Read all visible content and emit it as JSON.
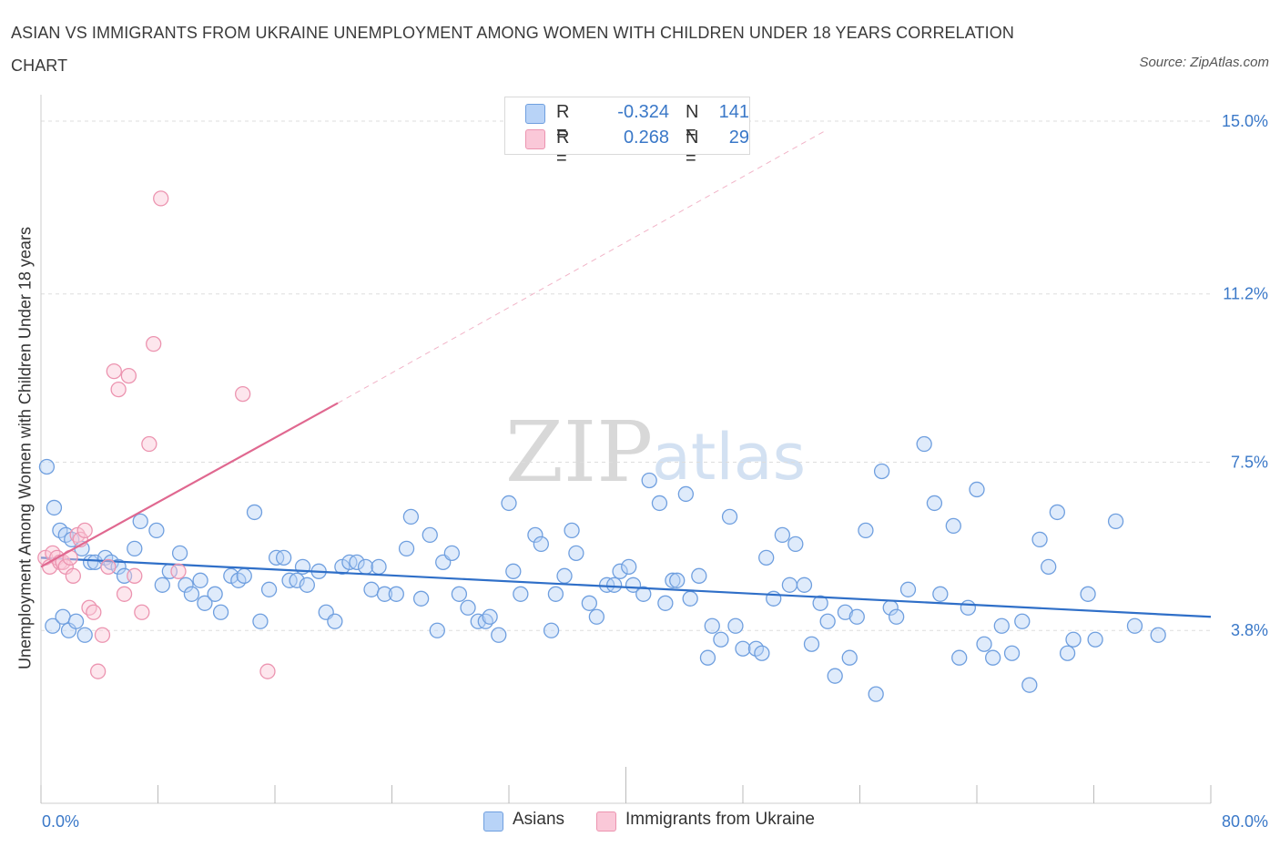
{
  "header": {
    "title": "ASIAN VS IMMIGRANTS FROM UKRAINE UNEMPLOYMENT AMONG WOMEN WITH CHILDREN UNDER 18 YEARS CORRELATION CHART",
    "source": "Source: ZipAtlas.com"
  },
  "watermark": {
    "zip": "ZIP",
    "atlas": "atlas"
  },
  "legend": {
    "rows": [
      {
        "swatch": "#b8d3f7",
        "border": "#6f9fdf",
        "r_label": "R =",
        "r_value": "-0.324",
        "n_label": "N =",
        "n_value": "141"
      },
      {
        "swatch": "#fac8d8",
        "border": "#ec94b0",
        "r_label": "R =",
        "r_value": "0.268",
        "n_label": "N =",
        "n_value": "29"
      }
    ]
  },
  "bottom_legend": [
    {
      "label": "Asians",
      "swatch": "#b8d3f7",
      "border": "#6f9fdf"
    },
    {
      "label": "Immigrants from Ukraine",
      "swatch": "#fac8d8",
      "border": "#ec94b0"
    }
  ],
  "chart_data": {
    "type": "scatter",
    "title": "ASIAN VS IMMIGRANTS FROM UKRAINE UNEMPLOYMENT AMONG WOMEN WITH CHILDREN UNDER 18 YEARS CORRELATION CHART",
    "xlabel": "",
    "ylabel": "Unemployment Among Women with Children Under 18 years",
    "xlim": [
      0,
      80
    ],
    "ylim": [
      0,
      15.3
    ],
    "x_tick_labels": [
      "0.0%",
      "80.0%"
    ],
    "y_ticks": [
      3.8,
      7.5,
      11.2,
      15.0
    ],
    "y_tick_labels": [
      "3.8%",
      "7.5%",
      "11.2%",
      "15.0%"
    ],
    "grid": "horizontal dashed",
    "legend_position": "top-center",
    "colors": {
      "asians": "#6f9fdf",
      "asians_fill": "#b8d3f7",
      "ukraine": "#ec94b0",
      "ukraine_fill": "#fac8d8",
      "asians_trend": "#2f6fc8",
      "ukraine_trend": "#e06890"
    },
    "series": [
      {
        "name": "Asians",
        "color": "#6f9fdf",
        "trend": {
          "x": [
            0,
            80
          ],
          "y": [
            5.4,
            4.1
          ]
        },
        "points": [
          [
            0.4,
            7.4
          ],
          [
            0.9,
            6.5
          ],
          [
            1.3,
            6.0
          ],
          [
            1.7,
            5.9
          ],
          [
            2.1,
            5.8
          ],
          [
            2.8,
            5.6
          ],
          [
            3.4,
            5.3
          ],
          [
            3.7,
            5.3
          ],
          [
            4.4,
            5.4
          ],
          [
            4.8,
            5.3
          ],
          [
            5.3,
            5.2
          ],
          [
            5.7,
            5.0
          ],
          [
            6.4,
            5.6
          ],
          [
            6.8,
            6.2
          ],
          [
            7.9,
            6.0
          ],
          [
            8.3,
            4.8
          ],
          [
            8.8,
            5.1
          ],
          [
            9.5,
            5.5
          ],
          [
            9.9,
            4.8
          ],
          [
            10.3,
            4.6
          ],
          [
            10.9,
            4.9
          ],
          [
            11.2,
            4.4
          ],
          [
            11.9,
            4.6
          ],
          [
            12.3,
            4.2
          ],
          [
            13.0,
            5.0
          ],
          [
            13.5,
            4.9
          ],
          [
            13.9,
            5.0
          ],
          [
            14.6,
            6.4
          ],
          [
            15.0,
            4.0
          ],
          [
            15.6,
            4.7
          ],
          [
            16.1,
            5.4
          ],
          [
            16.6,
            5.4
          ],
          [
            17.0,
            4.9
          ],
          [
            17.5,
            4.9
          ],
          [
            17.9,
            5.2
          ],
          [
            18.2,
            4.8
          ],
          [
            19.0,
            5.1
          ],
          [
            19.5,
            4.2
          ],
          [
            20.1,
            4.0
          ],
          [
            20.6,
            5.2
          ],
          [
            21.1,
            5.3
          ],
          [
            21.6,
            5.3
          ],
          [
            22.2,
            5.2
          ],
          [
            22.6,
            4.7
          ],
          [
            23.1,
            5.2
          ],
          [
            23.5,
            4.6
          ],
          [
            24.3,
            4.6
          ],
          [
            25.0,
            5.6
          ],
          [
            25.3,
            6.3
          ],
          [
            26.0,
            4.5
          ],
          [
            26.6,
            5.9
          ],
          [
            27.1,
            3.8
          ],
          [
            27.5,
            5.3
          ],
          [
            28.1,
            5.5
          ],
          [
            28.6,
            4.6
          ],
          [
            29.2,
            4.3
          ],
          [
            29.9,
            4.0
          ],
          [
            30.4,
            4.0
          ],
          [
            30.7,
            4.1
          ],
          [
            31.3,
            3.7
          ],
          [
            32.0,
            6.6
          ],
          [
            32.3,
            5.1
          ],
          [
            32.8,
            4.6
          ],
          [
            33.8,
            5.9
          ],
          [
            34.2,
            5.7
          ],
          [
            34.9,
            3.8
          ],
          [
            35.2,
            4.6
          ],
          [
            35.8,
            5.0
          ],
          [
            36.3,
            6.0
          ],
          [
            36.6,
            5.5
          ],
          [
            37.5,
            4.4
          ],
          [
            38.0,
            4.1
          ],
          [
            38.7,
            4.8
          ],
          [
            39.2,
            4.8
          ],
          [
            39.6,
            5.1
          ],
          [
            40.2,
            5.2
          ],
          [
            40.5,
            4.8
          ],
          [
            41.2,
            4.6
          ],
          [
            41.6,
            7.1
          ],
          [
            42.3,
            6.6
          ],
          [
            42.7,
            4.4
          ],
          [
            43.2,
            4.9
          ],
          [
            43.5,
            4.9
          ],
          [
            44.1,
            6.8
          ],
          [
            44.4,
            4.5
          ],
          [
            45.0,
            5.0
          ],
          [
            45.6,
            3.2
          ],
          [
            45.9,
            3.9
          ],
          [
            46.5,
            3.6
          ],
          [
            47.1,
            6.3
          ],
          [
            47.5,
            3.9
          ],
          [
            48.0,
            3.4
          ],
          [
            48.9,
            3.4
          ],
          [
            49.3,
            3.3
          ],
          [
            49.6,
            5.4
          ],
          [
            50.1,
            4.5
          ],
          [
            50.7,
            5.9
          ],
          [
            51.2,
            4.8
          ],
          [
            51.6,
            5.7
          ],
          [
            52.2,
            4.8
          ],
          [
            52.7,
            3.5
          ],
          [
            53.3,
            4.4
          ],
          [
            53.8,
            4.0
          ],
          [
            54.3,
            2.8
          ],
          [
            55.0,
            4.2
          ],
          [
            55.3,
            3.2
          ],
          [
            55.8,
            4.1
          ],
          [
            56.4,
            6.0
          ],
          [
            57.1,
            2.4
          ],
          [
            57.5,
            7.3
          ],
          [
            58.1,
            4.3
          ],
          [
            58.5,
            4.1
          ],
          [
            59.3,
            4.7
          ],
          [
            60.4,
            7.9
          ],
          [
            61.1,
            6.6
          ],
          [
            61.5,
            4.6
          ],
          [
            62.4,
            6.1
          ],
          [
            62.8,
            3.2
          ],
          [
            63.4,
            4.3
          ],
          [
            64.0,
            6.9
          ],
          [
            64.5,
            3.5
          ],
          [
            65.1,
            3.2
          ],
          [
            65.7,
            3.9
          ],
          [
            66.4,
            3.3
          ],
          [
            67.1,
            4.0
          ],
          [
            67.6,
            2.6
          ],
          [
            68.3,
            5.8
          ],
          [
            68.9,
            5.2
          ],
          [
            69.5,
            6.4
          ],
          [
            70.2,
            3.3
          ],
          [
            70.6,
            3.6
          ],
          [
            71.6,
            4.6
          ],
          [
            72.1,
            3.6
          ],
          [
            73.5,
            6.2
          ],
          [
            74.8,
            3.9
          ],
          [
            76.4,
            3.7
          ],
          [
            0.8,
            3.9
          ],
          [
            1.5,
            4.1
          ],
          [
            1.9,
            3.8
          ],
          [
            2.4,
            4.0
          ],
          [
            3.0,
            3.7
          ]
        ]
      },
      {
        "name": "Immigrants from Ukraine",
        "color": "#ec94b0",
        "trend": {
          "x": [
            0,
            20.3
          ],
          "y": [
            5.2,
            8.8
          ]
        },
        "trend_extension": {
          "x": [
            20.3,
            53.7
          ],
          "y": [
            8.8,
            14.8
          ]
        },
        "points": [
          [
            0.3,
            5.4
          ],
          [
            0.6,
            5.2
          ],
          [
            0.8,
            5.5
          ],
          [
            1.1,
            5.4
          ],
          [
            1.3,
            5.3
          ],
          [
            1.5,
            5.3
          ],
          [
            1.7,
            5.2
          ],
          [
            2.0,
            5.4
          ],
          [
            2.2,
            5.0
          ],
          [
            2.5,
            5.9
          ],
          [
            2.7,
            5.8
          ],
          [
            3.0,
            6.0
          ],
          [
            3.3,
            4.3
          ],
          [
            3.6,
            4.2
          ],
          [
            3.9,
            2.9
          ],
          [
            4.2,
            3.7
          ],
          [
            4.6,
            5.2
          ],
          [
            5.0,
            9.5
          ],
          [
            5.3,
            9.1
          ],
          [
            5.7,
            4.6
          ],
          [
            6.0,
            9.4
          ],
          [
            6.4,
            5.0
          ],
          [
            6.9,
            4.2
          ],
          [
            7.4,
            7.9
          ],
          [
            7.7,
            10.1
          ],
          [
            8.2,
            13.3
          ],
          [
            9.4,
            5.1
          ],
          [
            13.8,
            9.0
          ],
          [
            15.5,
            2.9
          ]
        ]
      }
    ]
  }
}
